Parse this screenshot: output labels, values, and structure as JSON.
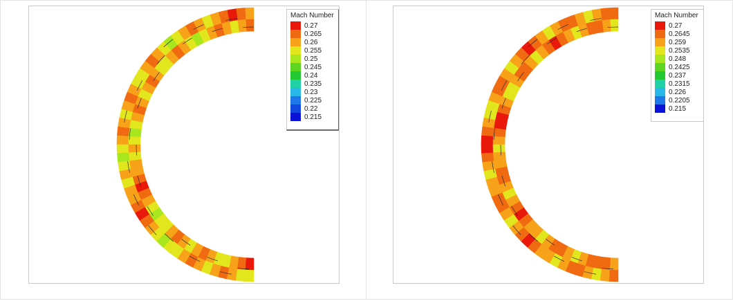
{
  "chart_data": [
    {
      "type": "heatmap",
      "legend": {
        "title": "Mach Number",
        "levels": [
          "0.27",
          "0.265",
          "0.26",
          "0.255",
          "0.25",
          "0.245",
          "0.24",
          "0.235",
          "0.23",
          "0.225",
          "0.22",
          "0.215"
        ],
        "colors": [
          "#e8180a",
          "#f06a12",
          "#f8a21a",
          "#e2e61c",
          "#a8e61e",
          "#5cd620",
          "#22c832",
          "#20d2a6",
          "#2ab8e8",
          "#1e78e8",
          "#1248e0",
          "#0a12d8"
        ]
      },
      "ring_pattern": [
        2,
        1,
        0,
        1,
        2,
        3,
        2,
        1,
        2,
        3,
        4,
        3,
        2,
        1,
        2,
        3,
        3,
        2,
        1,
        2,
        3,
        2,
        1,
        2,
        3,
        4,
        3,
        2,
        3,
        2,
        2,
        1,
        0,
        1,
        2,
        3,
        4,
        3,
        3,
        2,
        1,
        2,
        3,
        2,
        1,
        2,
        3,
        3
      ]
    },
    {
      "type": "heatmap",
      "legend": {
        "title": "Mach Number",
        "levels": [
          "0.27",
          "0.2645",
          "0.259",
          "0.2535",
          "0.248",
          "0.2425",
          "0.237",
          "0.2315",
          "0.226",
          "0.2205",
          "0.215"
        ],
        "colors": [
          "#e8180a",
          "#f06a12",
          "#f8a21a",
          "#e2e61c",
          "#a8e61e",
          "#5cd620",
          "#22c832",
          "#20d2a6",
          "#2ab8e8",
          "#1e78e8",
          "#0a12d8"
        ]
      },
      "ring_pattern": [
        1,
        1,
        2,
        3,
        2,
        1,
        1,
        2,
        3,
        2,
        1,
        0,
        1,
        2,
        3,
        2,
        1,
        1,
        2,
        3,
        3,
        2,
        1,
        0,
        0,
        1,
        2,
        3,
        2,
        2,
        1,
        1,
        2,
        3,
        2,
        1,
        0,
        1,
        2,
        2,
        3,
        2,
        1,
        1,
        2,
        3,
        2,
        1
      ]
    }
  ]
}
